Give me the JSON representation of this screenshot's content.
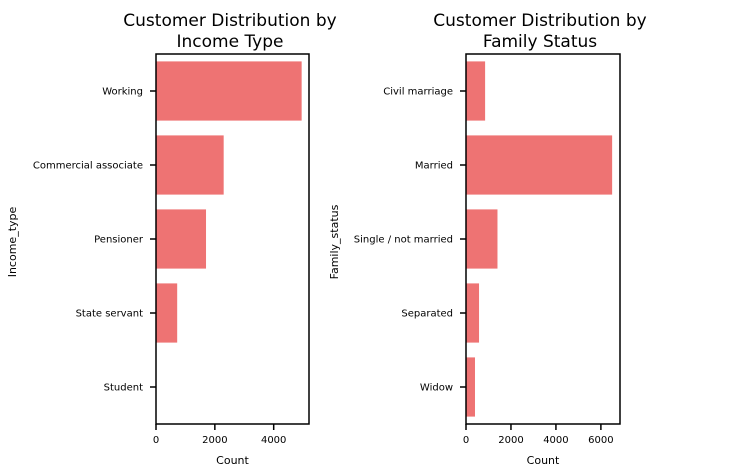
{
  "chart_data": [
    {
      "type": "bar",
      "orientation": "horizontal",
      "title_lines": [
        "Customer Distribution by",
        "Income Type"
      ],
      "xlabel": "Count",
      "ylabel": "Income_type",
      "categories": [
        "Working",
        "Commercial associate",
        "Pensioner",
        "State servant",
        "Student"
      ],
      "values": [
        4950,
        2300,
        1700,
        720,
        10
      ],
      "xlim": [
        0,
        5200
      ],
      "xticks": [
        0,
        2000,
        4000
      ],
      "xtick_labels": [
        "0",
        "2000",
        "4000"
      ],
      "grid": false,
      "color": "#ee7373"
    },
    {
      "type": "bar",
      "orientation": "horizontal",
      "title_lines": [
        "Customer Distribution by",
        "Family Status"
      ],
      "xlabel": "Count",
      "ylabel": "Family_status",
      "categories": [
        "Civil marriage",
        "Married",
        "Single / not married",
        "Separated",
        "Widow"
      ],
      "values": [
        850,
        6500,
        1400,
        580,
        400
      ],
      "xlim": [
        0,
        6850
      ],
      "xticks": [
        0,
        2000,
        4000,
        6000
      ],
      "xtick_labels": [
        "0",
        "2000",
        "4000",
        "6000"
      ],
      "grid": false,
      "color": "#ee7373"
    }
  ]
}
